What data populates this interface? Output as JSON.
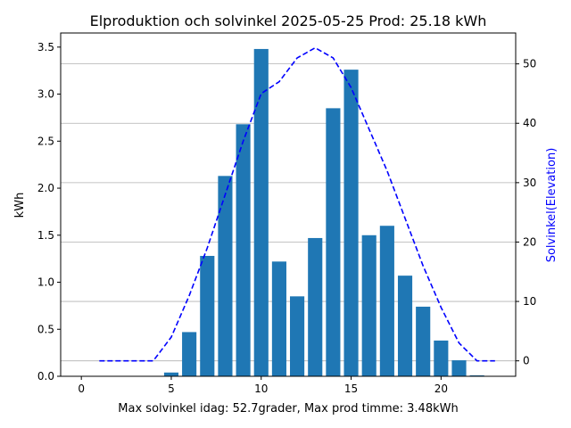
{
  "chart_data": {
    "type": "bar",
    "title": "Elproduktion och solvinkel 2025-05-25 Prod: 25.18 kWh",
    "xlabel": "Max solvinkel idag: 52.7grader, Max prod timme: 3.48kWh",
    "ylabel": "kWh",
    "y2label": "Solvinkel(Elevation)",
    "xlim": [
      -1.15,
      24.15
    ],
    "ylim": [
      0,
      3.65
    ],
    "y2lim": [
      -2.6,
      55.2
    ],
    "xticks": [
      0,
      5,
      10,
      15,
      20
    ],
    "yticks": [
      "0.0",
      "0.5",
      "1.0",
      "1.5",
      "2.0",
      "2.5",
      "3.0",
      "3.5"
    ],
    "y2ticks": [
      0,
      10,
      20,
      30,
      40,
      50
    ],
    "grid": "right-axis horizontal lines",
    "bar_color": "#1f77b4",
    "line_color": "#0000ff",
    "series": [
      {
        "type": "bar",
        "x": [
          0,
          1,
          2,
          3,
          4,
          5,
          6,
          7,
          8,
          9,
          10,
          11,
          12,
          13,
          14,
          15,
          16,
          17,
          18,
          19,
          20,
          21,
          22,
          23
        ],
        "values": [
          0,
          0,
          0,
          0,
          0,
          0.04,
          0.47,
          1.28,
          2.13,
          2.68,
          3.48,
          1.22,
          0.85,
          1.47,
          2.85,
          3.26,
          1.5,
          1.6,
          1.07,
          0.74,
          0.38,
          0.17,
          0.01,
          0
        ]
      },
      {
        "type": "line",
        "style": "dashed",
        "axis": "right",
        "x": [
          1,
          2,
          3,
          4,
          5,
          6,
          7,
          8,
          9,
          10,
          11,
          12,
          13,
          14,
          15,
          16,
          17,
          18,
          19,
          20,
          21,
          22,
          23
        ],
        "values": [
          0,
          0,
          0,
          0,
          4,
          11,
          19,
          28,
          37,
          45,
          47,
          51,
          52.7,
          51,
          46,
          39,
          32,
          24,
          16,
          9,
          3,
          0,
          0
        ]
      }
    ]
  }
}
